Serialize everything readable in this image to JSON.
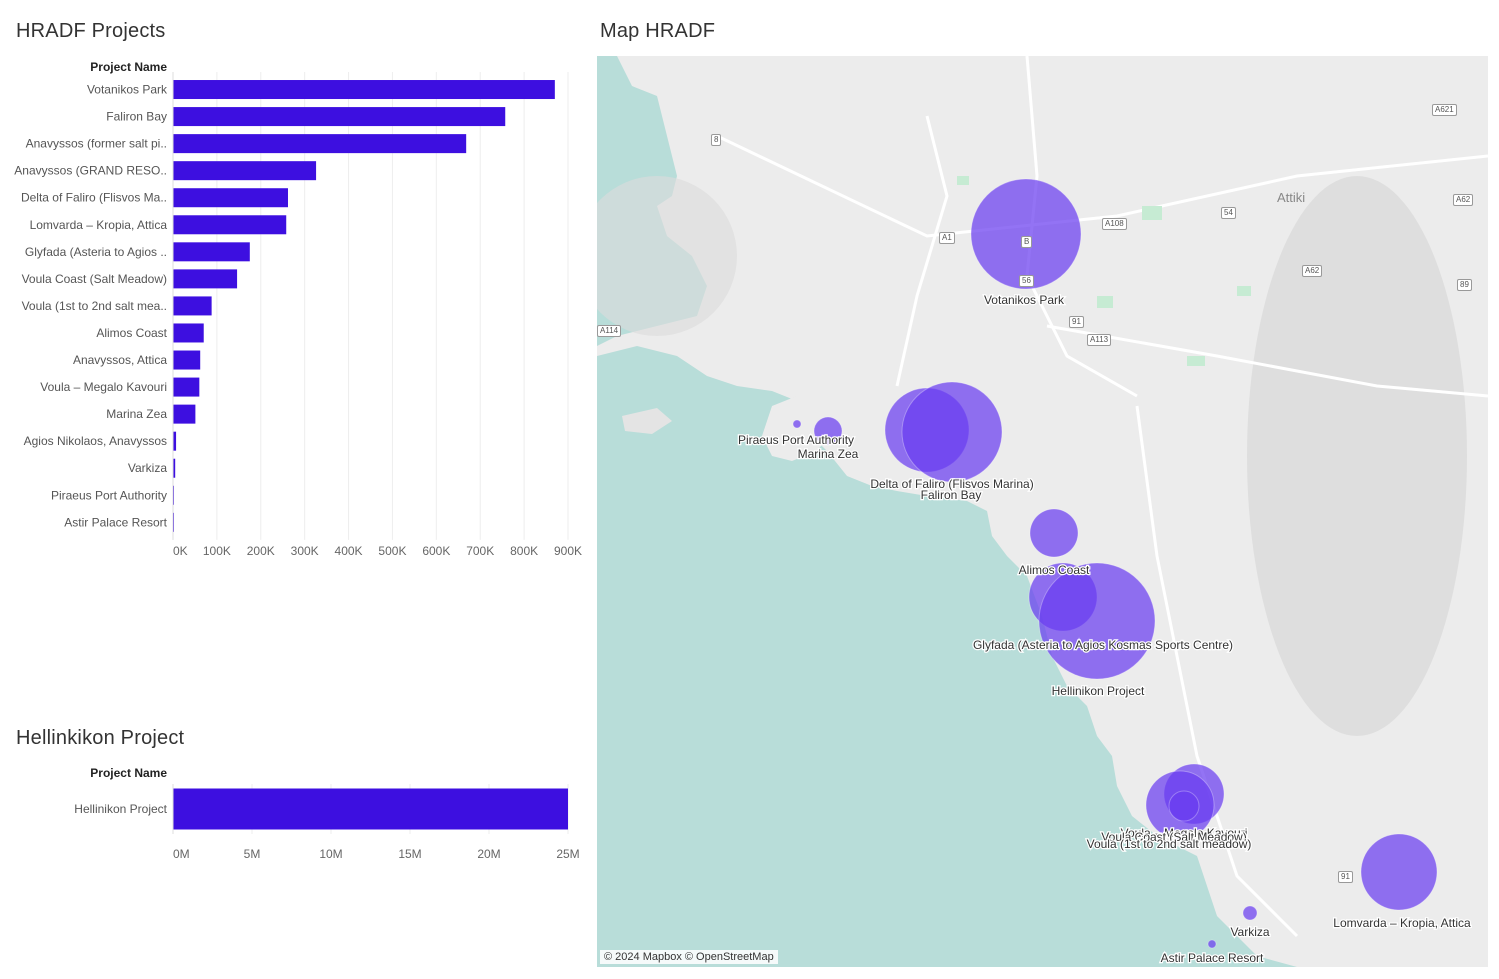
{
  "chart_data": [
    {
      "type": "bar",
      "orientation": "horizontal",
      "title": "HRADF Projects",
      "ylabel": "Project Name",
      "categories": [
        "Votanikos Park",
        "Faliron Bay",
        "Anavyssos (former salt pi..",
        "Anavyssos (GRAND RESO..",
        "Delta of Faliro (Flisvos Ma..",
        "Lomvarda – Kropia, Attica",
        "Glyfada (Asteria to Agios ..",
        "Voula Coast (Salt Meadow)",
        "Voula (1st to 2nd salt mea..",
        "Alimos Coast",
        "Anavyssos, Attica",
        "Voula – Megalo Kavouri",
        "Marina Zea",
        "Agios Nikolaos, Anavyssos",
        "Varkiza",
        "Piraeus Port Authority",
        "Astir Palace Resort"
      ],
      "values": [
        870000,
        757000,
        668000,
        326000,
        262000,
        258000,
        175000,
        146000,
        88000,
        70000,
        62000,
        60000,
        51000,
        7000,
        5000,
        1000,
        1000
      ],
      "xlim": [
        0,
        900000
      ],
      "xticks": [
        "0K",
        "100K",
        "200K",
        "300K",
        "400K",
        "500K",
        "600K",
        "700K",
        "800K",
        "900K"
      ],
      "color": "#3d0fe0"
    },
    {
      "type": "bar",
      "orientation": "horizontal",
      "title": "Hellinkikon Project",
      "ylabel": "Project Name",
      "categories": [
        "Hellinikon Project"
      ],
      "values": [
        25000000
      ],
      "xlim": [
        0,
        25000000
      ],
      "xticks": [
        "0M",
        "5M",
        "10M",
        "15M",
        "20M",
        "25M"
      ],
      "color": "#3d0fe0"
    }
  ],
  "map": {
    "title": "Map HRADF",
    "attribution": "© 2024 Mapbox © OpenStreetMap",
    "region_label": "Attiki",
    "bubble_color": "#6a3df0",
    "road_badges": [
      "8",
      "A621",
      "54",
      "A62",
      "A1",
      "A108",
      "B",
      "56",
      "A62",
      "89",
      "91",
      "A114",
      "A113",
      "91"
    ],
    "points": [
      {
        "label": "Votanikos Park",
        "value": 870000
      },
      {
        "label": "Piraeus Port Authority",
        "value": 1000
      },
      {
        "label": "Marina Zea",
        "value": 51000
      },
      {
        "label": "Delta of Faliro (Flisvos Marina)",
        "value": 262000
      },
      {
        "label": "Faliron Bay",
        "value": 757000
      },
      {
        "label": "Alimos Coast",
        "value": 70000
      },
      {
        "label": "Glyfada (Asteria to Agios Kosmas Sports Centre)",
        "value": 175000
      },
      {
        "label": "Hellinikon Project",
        "value": 25000000
      },
      {
        "label": "Voula – Megalo Kavouri",
        "value": 60000
      },
      {
        "label": "Voula Coast (Salt Meadow)",
        "value": 146000
      },
      {
        "label": "Voula (1st to 2nd salt meadow)",
        "value": 88000
      },
      {
        "label": "Varkiza",
        "value": 5000
      },
      {
        "label": "Astir Palace Resort",
        "value": 1000
      },
      {
        "label": "Lomvarda – Kropia, Attica",
        "value": 258000
      }
    ]
  }
}
